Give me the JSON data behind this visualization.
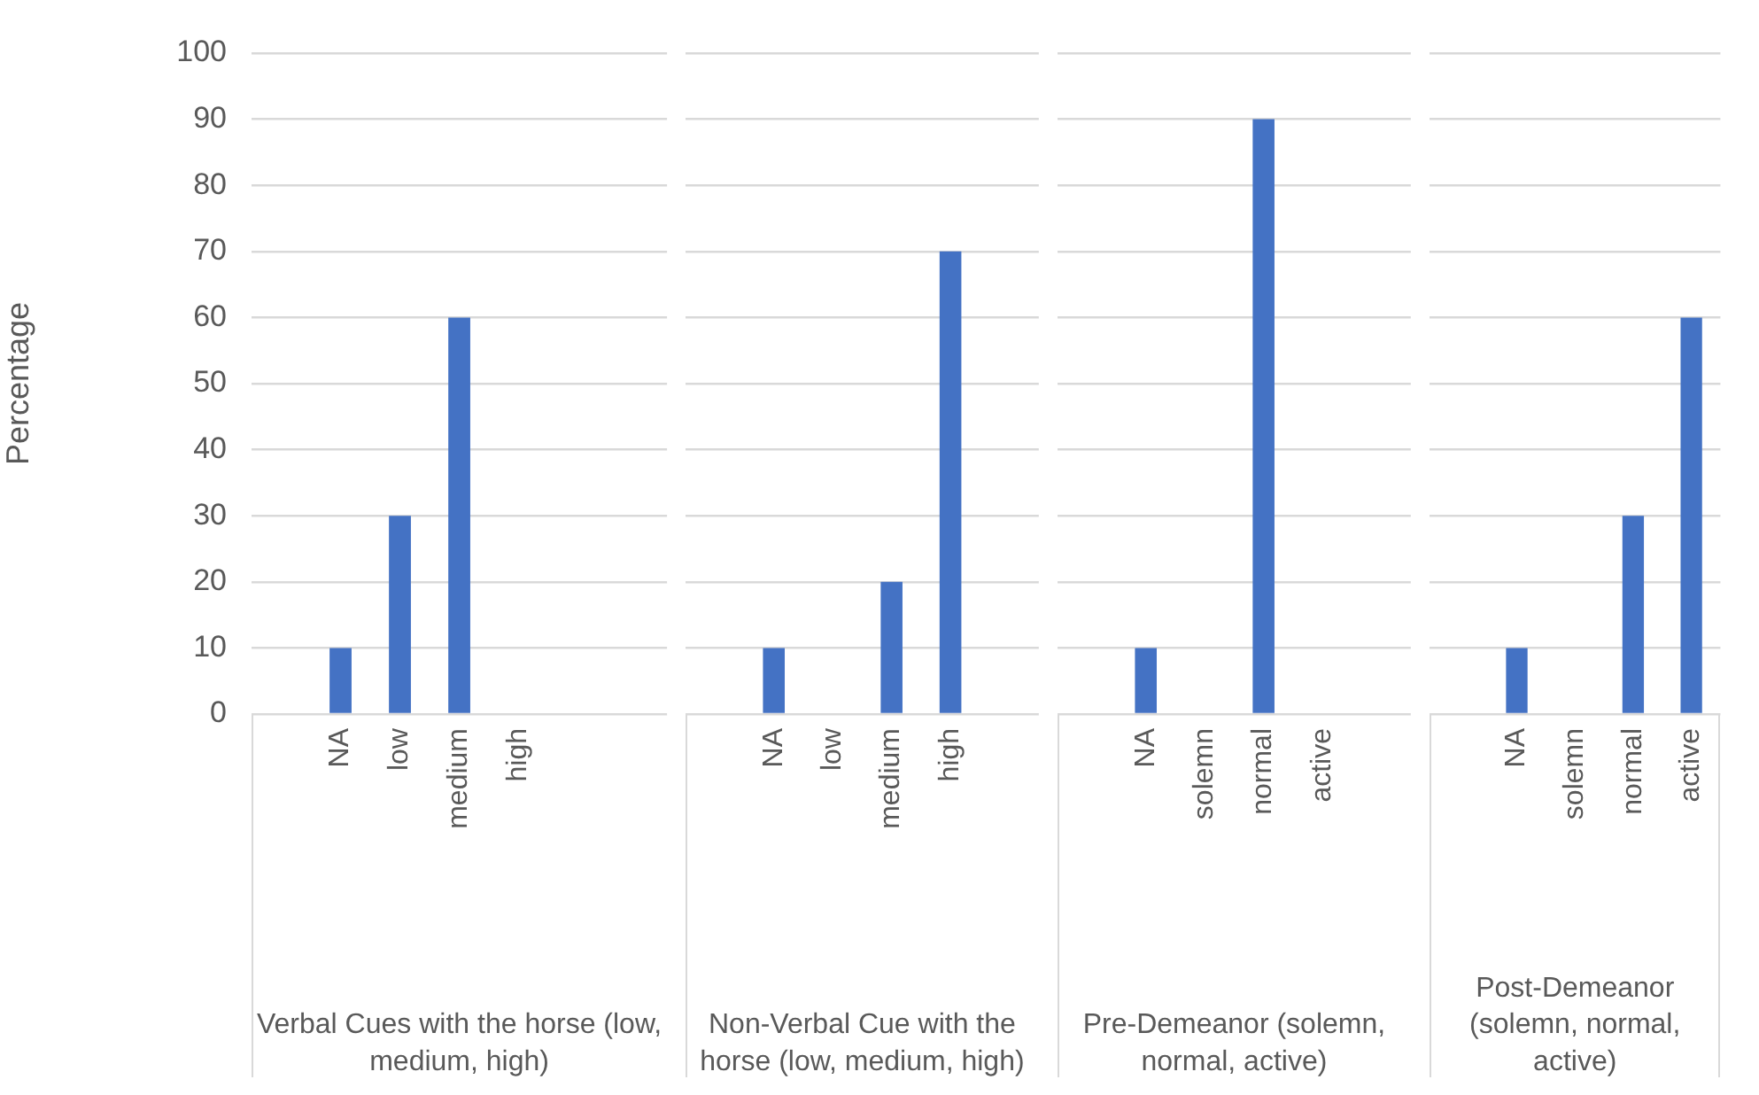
{
  "chart_data": [
    {
      "type": "bar",
      "categories": [
        null,
        "NA",
        "low",
        "medium",
        "high",
        null,
        null
      ],
      "values": [
        null,
        10,
        30,
        60,
        0,
        null,
        null
      ],
      "color": "#4472c4",
      "xlabel": "Verbal Cues with the horse (low, medium, high)",
      "ylabel": "Percentage",
      "ylim": [
        0,
        100
      ],
      "yticks": [
        0,
        10,
        20,
        30,
        40,
        50,
        60,
        70,
        80,
        90,
        100
      ],
      "grid": "y"
    },
    {
      "type": "bar",
      "categories": [
        null,
        "NA",
        "low",
        "medium",
        "high",
        null
      ],
      "values": [
        null,
        10,
        0,
        20,
        70,
        null
      ],
      "color": "#4472c4",
      "xlabel": "Non-Verbal Cue with the horse (low, medium, high)",
      "ylim": [
        0,
        100
      ],
      "yticks": [
        0,
        10,
        20,
        30,
        40,
        50,
        60,
        70,
        80,
        90,
        100
      ],
      "grid": "y",
      "tick_labels": "x"
    },
    {
      "type": "bar",
      "categories": [
        null,
        "NA",
        "solemn",
        "normal",
        "active",
        null
      ],
      "values": [
        null,
        10,
        0,
        90,
        0,
        null
      ],
      "color": "#4472c4",
      "xlabel": "Pre-Demeanor (solemn, normal, active)",
      "ylim": [
        0,
        100
      ],
      "yticks": [
        0,
        10,
        20,
        30,
        40,
        50,
        60,
        70,
        80,
        90,
        100
      ],
      "grid": "y",
      "tick_labels": "x"
    },
    {
      "type": "bar",
      "categories": [
        null,
        "NA",
        "solemn",
        "normal",
        "active"
      ],
      "values": [
        null,
        10,
        0,
        30,
        60
      ],
      "color": "#4472c4",
      "xlabel": "Post-Demeanor (solemn, normal, active)",
      "ylim": [
        0,
        100
      ],
      "yticks": [
        0,
        10,
        20,
        30,
        40,
        50,
        60,
        70,
        80,
        90,
        100
      ],
      "grid": "y",
      "tick_labels": "x"
    }
  ]
}
